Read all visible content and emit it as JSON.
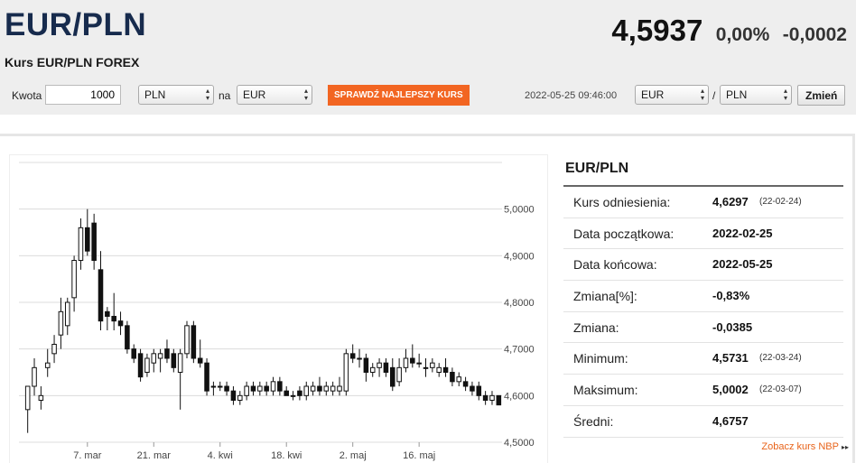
{
  "header": {
    "title": "EUR/PLN",
    "subtitle": "Kurs EUR/PLN FOREX",
    "rate": "4,5937",
    "change_pct": "0,00%",
    "change_abs": "-0,0002"
  },
  "converter": {
    "amount_label": "Kwota",
    "amount_value": "1000",
    "from_currency": "PLN",
    "to_label": "na",
    "to_currency": "EUR",
    "check_button": "SPRAWDŹ NAJLEPSZY KURS",
    "timestamp": "2022-05-25 09:46:00",
    "pair_base": "EUR",
    "pair_sep": "/",
    "pair_quote": "PLN",
    "change_button": "Zmień"
  },
  "stats": {
    "title": "EUR/PLN",
    "rows": [
      {
        "label": "Kurs odniesienia:",
        "value": "4,6297",
        "date": "(22-02-24)"
      },
      {
        "label": "Data początkowa:",
        "value": "2022-02-25",
        "date": ""
      },
      {
        "label": "Data końcowa:",
        "value": "2022-05-25",
        "date": ""
      },
      {
        "label": "Zmiana[%]:",
        "value": "-0,83%",
        "date": ""
      },
      {
        "label": "Zmiana:",
        "value": "-0,0385",
        "date": ""
      },
      {
        "label": "Minimum:",
        "value": "4,5731",
        "date": "(22-03-24)"
      },
      {
        "label": "Maksimum:",
        "value": "5,0002",
        "date": "(22-03-07)"
      },
      {
        "label": "Średni:",
        "value": "4,6757",
        "date": ""
      }
    ],
    "nbp_link": "Zobacz kurs NBP"
  },
  "chart_data": {
    "type": "candlestick",
    "ylim": [
      4.5,
      5.1
    ],
    "yticks": [
      "5,0000",
      "4,9000",
      "4,8000",
      "4,7000",
      "4,6000",
      "4,5000"
    ],
    "ytick_values": [
      5.0,
      4.9,
      4.8,
      4.7,
      4.6,
      4.5
    ],
    "xticks": [
      "7. mar",
      "21. mar",
      "4. kwi",
      "18. kwi",
      "2. maj",
      "16. maj"
    ],
    "xtick_index": [
      9,
      19,
      29,
      39,
      49,
      59
    ],
    "grid": true,
    "up_color": "#ffffff",
    "down_color": "#111111",
    "candles": [
      [
        4.57,
        4.62,
        4.52,
        4.62
      ],
      [
        4.62,
        4.68,
        4.6,
        4.66
      ],
      [
        4.59,
        4.62,
        4.57,
        4.6
      ],
      [
        4.66,
        4.7,
        4.64,
        4.67
      ],
      [
        4.69,
        4.73,
        4.67,
        4.71
      ],
      [
        4.73,
        4.81,
        4.7,
        4.78
      ],
      [
        4.75,
        4.81,
        4.73,
        4.8
      ],
      [
        4.81,
        4.9,
        4.78,
        4.89
      ],
      [
        4.89,
        4.98,
        4.87,
        4.96
      ],
      [
        4.96,
        5.0,
        4.9,
        4.91
      ],
      [
        4.97,
        4.99,
        4.87,
        4.89
      ],
      [
        4.87,
        4.91,
        4.74,
        4.76
      ],
      [
        4.78,
        4.79,
        4.74,
        4.77
      ],
      [
        4.77,
        4.82,
        4.74,
        4.76
      ],
      [
        4.76,
        4.78,
        4.73,
        4.75
      ],
      [
        4.75,
        4.76,
        4.69,
        4.7
      ],
      [
        4.7,
        4.71,
        4.67,
        4.68
      ],
      [
        4.69,
        4.7,
        4.63,
        4.64
      ],
      [
        4.65,
        4.69,
        4.64,
        4.68
      ],
      [
        4.67,
        4.7,
        4.65,
        4.69
      ],
      [
        4.68,
        4.7,
        4.65,
        4.69
      ],
      [
        4.7,
        4.72,
        4.67,
        4.68
      ],
      [
        4.69,
        4.7,
        4.65,
        4.66
      ],
      [
        4.65,
        4.7,
        4.57,
        4.69
      ],
      [
        4.69,
        4.76,
        4.68,
        4.75
      ],
      [
        4.75,
        4.76,
        4.67,
        4.68
      ],
      [
        4.68,
        4.72,
        4.66,
        4.67
      ],
      [
        4.67,
        4.68,
        4.6,
        4.61
      ],
      [
        4.62,
        4.63,
        4.6,
        4.62
      ],
      [
        4.62,
        4.63,
        4.61,
        4.62
      ],
      [
        4.62,
        4.63,
        4.6,
        4.61
      ],
      [
        4.61,
        4.62,
        4.58,
        4.59
      ],
      [
        4.59,
        4.61,
        4.58,
        4.6
      ],
      [
        4.6,
        4.63,
        4.59,
        4.62
      ],
      [
        4.62,
        4.63,
        4.6,
        4.61
      ],
      [
        4.61,
        4.63,
        4.6,
        4.62
      ],
      [
        4.62,
        4.63,
        4.6,
        4.61
      ],
      [
        4.61,
        4.64,
        4.6,
        4.63
      ],
      [
        4.63,
        4.64,
        4.6,
        4.61
      ],
      [
        4.61,
        4.62,
        4.6,
        4.6
      ],
      [
        4.6,
        4.61,
        4.59,
        4.6
      ],
      [
        4.61,
        4.62,
        4.59,
        4.6
      ],
      [
        4.6,
        4.63,
        4.59,
        4.62
      ],
      [
        4.61,
        4.63,
        4.6,
        4.62
      ],
      [
        4.62,
        4.64,
        4.6,
        4.61
      ],
      [
        4.61,
        4.63,
        4.6,
        4.62
      ],
      [
        4.61,
        4.63,
        4.6,
        4.62
      ],
      [
        4.61,
        4.64,
        4.6,
        4.62
      ],
      [
        4.61,
        4.7,
        4.6,
        4.69
      ],
      [
        4.69,
        4.71,
        4.67,
        4.68
      ],
      [
        4.68,
        4.7,
        4.66,
        4.68
      ],
      [
        4.68,
        4.69,
        4.63,
        4.65
      ],
      [
        4.65,
        4.67,
        4.64,
        4.66
      ],
      [
        4.66,
        4.68,
        4.64,
        4.67
      ],
      [
        4.67,
        4.68,
        4.64,
        4.65
      ],
      [
        4.66,
        4.68,
        4.61,
        4.62
      ],
      [
        4.63,
        4.68,
        4.62,
        4.66
      ],
      [
        4.66,
        4.7,
        4.65,
        4.68
      ],
      [
        4.68,
        4.71,
        4.66,
        4.67
      ],
      [
        4.67,
        4.69,
        4.66,
        4.67
      ],
      [
        4.66,
        4.68,
        4.64,
        4.66
      ],
      [
        4.66,
        4.68,
        4.65,
        4.67
      ],
      [
        4.65,
        4.67,
        4.64,
        4.66
      ],
      [
        4.66,
        4.68,
        4.64,
        4.65
      ],
      [
        4.65,
        4.66,
        4.62,
        4.63
      ],
      [
        4.63,
        4.65,
        4.62,
        4.64
      ],
      [
        4.63,
        4.64,
        4.61,
        4.62
      ],
      [
        4.62,
        4.63,
        4.6,
        4.61
      ],
      [
        4.62,
        4.63,
        4.59,
        4.6
      ],
      [
        4.6,
        4.61,
        4.58,
        4.59
      ],
      [
        4.59,
        4.61,
        4.58,
        4.6
      ],
      [
        4.6,
        4.6,
        4.58,
        4.58
      ]
    ]
  }
}
